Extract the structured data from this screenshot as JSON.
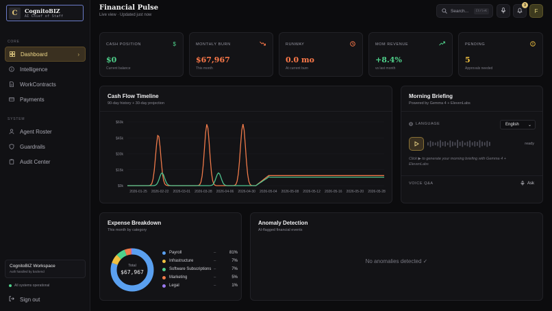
{
  "brand": {
    "logo_letter": "C",
    "name": "CognitoBIZ",
    "tagline": "AI Chief of Staff"
  },
  "sidebar": {
    "sections": [
      {
        "label": "CORE",
        "items": [
          {
            "label": "Dashboard",
            "icon": "grid-icon",
            "active": true
          },
          {
            "label": "Intelligence",
            "icon": "info-icon"
          },
          {
            "label": "WorkContracts",
            "icon": "document-icon"
          },
          {
            "label": "Payments",
            "icon": "card-icon"
          }
        ]
      },
      {
        "label": "SYSTEM",
        "items": [
          {
            "label": "Agent Roster",
            "icon": "user-icon"
          },
          {
            "label": "Guardrails",
            "icon": "shield-icon"
          },
          {
            "label": "Audit Center",
            "icon": "clipboard-icon"
          }
        ]
      }
    ],
    "workspace": {
      "name": "CognitoBIZ Workspace",
      "sub": "Auth handled by backend"
    },
    "status": "All systems operational",
    "signout": "Sign out"
  },
  "header": {
    "title": "Financial Pulse",
    "subtitle": "Live view · Updated just now",
    "search_placeholder": "Search...",
    "search_shortcut": "Ctrl+K",
    "notifications_count": "3",
    "avatar_letter": "F"
  },
  "kpis": [
    {
      "label": "CASH POSITION",
      "value": "$0",
      "sub": "Current balance",
      "icon": "dollar-icon",
      "color": "#4fd18b"
    },
    {
      "label": "MONTHLY BURN",
      "value": "$67,967",
      "sub": "This month",
      "icon": "trend-down-icon",
      "color": "#ff7a4a"
    },
    {
      "label": "RUNWAY",
      "value": "0.0 mo",
      "sub": "At current burn",
      "icon": "clock-icon",
      "color": "#ff7a4a"
    },
    {
      "label": "MOM REVENUE",
      "value": "+8.4%",
      "sub": "vs last month",
      "icon": "trend-up-icon",
      "color": "#4fd18b"
    },
    {
      "label": "PENDING",
      "value": "5",
      "sub": "Approvals needed",
      "icon": "alert-icon",
      "color": "#f0c040"
    }
  ],
  "cashflow": {
    "title": "Cash Flow Timeline",
    "subtitle": "90-day history + 30-day projection"
  },
  "chart_data": {
    "type": "line",
    "y_ticks": [
      "$60k",
      "$45k",
      "$30k",
      "$15k",
      "$0k"
    ],
    "ylim": [
      0,
      60000
    ],
    "x_ticks": [
      "2026-01-25",
      "2026-02-22",
      "2026-03-01",
      "2026-03-28",
      "2026-04-06",
      "2026-04-30",
      "2026-05-04",
      "2026-05-08",
      "2026-05-12",
      "2026-05-16",
      "2026-05-20",
      "2026-05-28"
    ],
    "series": [
      {
        "color": "#f07a4a",
        "peaks": [
          [
            0.12,
            48000
          ],
          [
            0.31,
            58000
          ],
          [
            0.45,
            58000
          ]
        ],
        "baseline": 0,
        "projection": 9500
      },
      {
        "color": "#4fc48f",
        "peaks": [
          [
            0.135,
            12000
          ],
          [
            0.355,
            12000
          ],
          [
            0.56,
            14000
          ]
        ],
        "baseline": 0,
        "projection": 8000
      }
    ]
  },
  "briefing": {
    "title": "Morning Briefing",
    "subtitle": "Powered by Gemma 4 + ElevenLabs",
    "language_label": "LANGUAGE",
    "language_value": "English",
    "status": "ready",
    "note": "Click ▶ to generate your morning briefing with Gemma 4 + ElevenLabs",
    "voice_label": "VOICE Q&A",
    "ask_label": "Ask"
  },
  "expense": {
    "title": "Expense Breakdown",
    "subtitle": "This month by category",
    "total_label": "Total",
    "total_value": "$67,967",
    "categories": [
      {
        "name": "Payroll",
        "pct": 81,
        "pct_label": "81%",
        "color": "#5aa0f0"
      },
      {
        "name": "Infrastructure",
        "pct": 7,
        "pct_label": "7%",
        "color": "#f0c040"
      },
      {
        "name": "Software Subscriptions",
        "pct": 7,
        "pct_label": "7%",
        "color": "#4fd18b"
      },
      {
        "name": "Marketing",
        "pct": 5,
        "pct_label": "5%",
        "color": "#f07a4a"
      },
      {
        "name": "Legal",
        "pct": 1,
        "pct_label": "1%",
        "color": "#9a7af0"
      }
    ]
  },
  "anomaly": {
    "title": "Anomaly Detection",
    "subtitle": "AI-flagged financial events",
    "empty": "No anomalies detected ✓"
  }
}
